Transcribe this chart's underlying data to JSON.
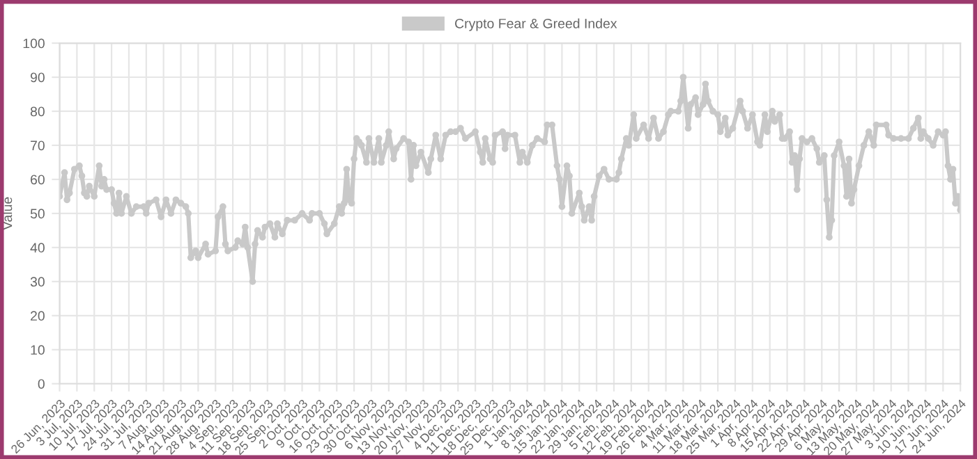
{
  "chart_data": {
    "type": "line",
    "ylabel": "Value",
    "legend": "top",
    "grid": true,
    "marker": "circle",
    "line_style": "solid",
    "xlim": [
      "2023-06-26",
      "2024-06-24"
    ],
    "ylim": [
      0,
      100
    ],
    "yticks": [
      0,
      10,
      20,
      30,
      40,
      50,
      60,
      70,
      80,
      90,
      100
    ],
    "xticks": [
      {
        "value": "2023-06-26",
        "label": "26 Jun, 2023"
      },
      {
        "value": "2023-07-03",
        "label": "3 Jul, 2023"
      },
      {
        "value": "2023-07-10",
        "label": "10 Jul, 2023"
      },
      {
        "value": "2023-07-17",
        "label": "17 Jul, 2023"
      },
      {
        "value": "2023-07-24",
        "label": "24 Jul, 2023"
      },
      {
        "value": "2023-07-31",
        "label": "31 Jul, 2023"
      },
      {
        "value": "2023-08-07",
        "label": "7 Aug, 2023"
      },
      {
        "value": "2023-08-14",
        "label": "14 Aug, 2023"
      },
      {
        "value": "2023-08-21",
        "label": "21 Aug, 2023"
      },
      {
        "value": "2023-08-28",
        "label": "28 Aug, 2023"
      },
      {
        "value": "2023-09-04",
        "label": "4 Sep, 2023"
      },
      {
        "value": "2023-09-11",
        "label": "11 Sep, 2023"
      },
      {
        "value": "2023-09-18",
        "label": "18 Sep, 2023"
      },
      {
        "value": "2023-09-25",
        "label": "25 Sep, 2023"
      },
      {
        "value": "2023-10-02",
        "label": "2 Oct, 2023"
      },
      {
        "value": "2023-10-09",
        "label": "9 Oct, 2023"
      },
      {
        "value": "2023-10-16",
        "label": "16 Oct, 2023"
      },
      {
        "value": "2023-10-23",
        "label": "23 Oct, 2023"
      },
      {
        "value": "2023-10-30",
        "label": "30 Oct, 2023"
      },
      {
        "value": "2023-11-06",
        "label": "6 Nov, 2023"
      },
      {
        "value": "2023-11-13",
        "label": "13 Nov, 2023"
      },
      {
        "value": "2023-11-20",
        "label": "20 Nov, 2023"
      },
      {
        "value": "2023-11-27",
        "label": "27 Nov, 2023"
      },
      {
        "value": "2023-12-04",
        "label": "4 Dec, 2023"
      },
      {
        "value": "2023-12-11",
        "label": "11 Dec, 2023"
      },
      {
        "value": "2023-12-18",
        "label": "18 Dec, 2023"
      },
      {
        "value": "2023-12-25",
        "label": "25 Dec, 2023"
      },
      {
        "value": "2024-01-01",
        "label": "1 Jan, 2024"
      },
      {
        "value": "2024-01-08",
        "label": "8 Jan, 2024"
      },
      {
        "value": "2024-01-15",
        "label": "15 Jan, 2024"
      },
      {
        "value": "2024-01-22",
        "label": "22 Jan, 2024"
      },
      {
        "value": "2024-01-29",
        "label": "29 Jan, 2024"
      },
      {
        "value": "2024-02-05",
        "label": "5 Feb, 2024"
      },
      {
        "value": "2024-02-12",
        "label": "12 Feb, 2024"
      },
      {
        "value": "2024-02-19",
        "label": "19 Feb, 2024"
      },
      {
        "value": "2024-02-26",
        "label": "26 Feb, 2024"
      },
      {
        "value": "2024-03-04",
        "label": "4 Mar, 2024"
      },
      {
        "value": "2024-03-11",
        "label": "11 Mar, 2024"
      },
      {
        "value": "2024-03-18",
        "label": "18 Mar, 2024"
      },
      {
        "value": "2024-03-25",
        "label": "25 Mar, 2024"
      },
      {
        "value": "2024-04-01",
        "label": "1 Apr, 2024"
      },
      {
        "value": "2024-04-08",
        "label": "8 Apr, 2024"
      },
      {
        "value": "2024-04-15",
        "label": "15 Apr, 2024"
      },
      {
        "value": "2024-04-22",
        "label": "22 Apr, 2024"
      },
      {
        "value": "2024-04-29",
        "label": "29 Apr, 2024"
      },
      {
        "value": "2024-05-06",
        "label": "6 May, 2024"
      },
      {
        "value": "2024-05-13",
        "label": "13 May, 2024"
      },
      {
        "value": "2024-05-20",
        "label": "20 May, 2024"
      },
      {
        "value": "2024-05-27",
        "label": "27 May, 2024"
      },
      {
        "value": "2024-06-03",
        "label": "3 Jun, 2024"
      },
      {
        "value": "2024-06-10",
        "label": "10 Jun, 2024"
      },
      {
        "value": "2024-06-17",
        "label": "17 Jun, 2024"
      },
      {
        "value": "2024-06-24",
        "label": "24 Jun, 2024"
      }
    ],
    "x": [
      "2023-06-26",
      "2023-06-28",
      "2023-06-29",
      "2023-06-30",
      "2023-07-02",
      "2023-07-04",
      "2023-07-05",
      "2023-07-06",
      "2023-07-07",
      "2023-07-08",
      "2023-07-10",
      "2023-07-12",
      "2023-07-13",
      "2023-07-14",
      "2023-07-15",
      "2023-07-17",
      "2023-07-18",
      "2023-07-19",
      "2023-07-20",
      "2023-07-21",
      "2023-07-23",
      "2023-07-25",
      "2023-07-27",
      "2023-07-30",
      "2023-07-31",
      "2023-08-01",
      "2023-08-04",
      "2023-08-06",
      "2023-08-08",
      "2023-08-10",
      "2023-08-12",
      "2023-08-14",
      "2023-08-16",
      "2023-08-17",
      "2023-08-18",
      "2023-08-20",
      "2023-08-21",
      "2023-08-24",
      "2023-08-25",
      "2023-08-28",
      "2023-08-29",
      "2023-08-31",
      "2023-09-01",
      "2023-09-02",
      "2023-09-05",
      "2023-09-06",
      "2023-09-08",
      "2023-09-09",
      "2023-09-10",
      "2023-09-12",
      "2023-09-13",
      "2023-09-14",
      "2023-09-16",
      "2023-09-17",
      "2023-09-19",
      "2023-09-21",
      "2023-09-22",
      "2023-09-24",
      "2023-09-26",
      "2023-09-29",
      "2023-10-02",
      "2023-10-05",
      "2023-10-06",
      "2023-10-09",
      "2023-10-11",
      "2023-10-12",
      "2023-10-15",
      "2023-10-17",
      "2023-10-18",
      "2023-10-19",
      "2023-10-20",
      "2023-10-21",
      "2023-10-22",
      "2023-10-23",
      "2023-10-24",
      "2023-10-25",
      "2023-10-26",
      "2023-10-28",
      "2023-10-29",
      "2023-10-31",
      "2023-11-02",
      "2023-11-03",
      "2023-11-05",
      "2023-11-06",
      "2023-11-08",
      "2023-11-09",
      "2023-11-12",
      "2023-11-14",
      "2023-11-15",
      "2023-11-16",
      "2023-11-17",
      "2023-11-19",
      "2023-11-22",
      "2023-11-23",
      "2023-11-25",
      "2023-11-27",
      "2023-11-29",
      "2023-12-01",
      "2023-12-03",
      "2023-12-05",
      "2023-12-07",
      "2023-12-11",
      "2023-12-13",
      "2023-12-14",
      "2023-12-15",
      "2023-12-17",
      "2023-12-18",
      "2023-12-19",
      "2023-12-22",
      "2023-12-23",
      "2023-12-24",
      "2023-12-27",
      "2023-12-29",
      "2023-12-30",
      "2024-01-01",
      "2024-01-03",
      "2024-01-05",
      "2024-01-08",
      "2024-01-09",
      "2024-01-11",
      "2024-01-13",
      "2024-01-14",
      "2024-01-15",
      "2024-01-17",
      "2024-01-18",
      "2024-01-19",
      "2024-01-22",
      "2024-01-23",
      "2024-01-24",
      "2024-01-26",
      "2024-01-27",
      "2024-01-28",
      "2024-01-30",
      "2024-02-01",
      "2024-02-03",
      "2024-02-06",
      "2024-02-07",
      "2024-02-08",
      "2024-02-10",
      "2024-02-11",
      "2024-02-13",
      "2024-02-14",
      "2024-02-17",
      "2024-02-19",
      "2024-02-21",
      "2024-02-23",
      "2024-02-25",
      "2024-02-27",
      "2024-02-28",
      "2024-03-02",
      "2024-03-03",
      "2024-03-04",
      "2024-03-06",
      "2024-03-07",
      "2024-03-09",
      "2024-03-10",
      "2024-03-12",
      "2024-03-13",
      "2024-03-14",
      "2024-03-16",
      "2024-03-18",
      "2024-03-19",
      "2024-03-21",
      "2024-03-22",
      "2024-03-24",
      "2024-03-27",
      "2024-03-28",
      "2024-03-30",
      "2024-04-01",
      "2024-04-03",
      "2024-04-04",
      "2024-04-06",
      "2024-04-07",
      "2024-04-09",
      "2024-04-10",
      "2024-04-12",
      "2024-04-13",
      "2024-04-14",
      "2024-04-16",
      "2024-04-17",
      "2024-04-18",
      "2024-04-19",
      "2024-04-20",
      "2024-04-21",
      "2024-04-23",
      "2024-04-25",
      "2024-04-27",
      "2024-04-28",
      "2024-04-30",
      "2024-05-01",
      "2024-05-02",
      "2024-05-03",
      "2024-05-04",
      "2024-05-06",
      "2024-05-08",
      "2024-05-09",
      "2024-05-10",
      "2024-05-11",
      "2024-05-12",
      "2024-05-14",
      "2024-05-16",
      "2024-05-18",
      "2024-05-20",
      "2024-05-21",
      "2024-05-25",
      "2024-05-26",
      "2024-05-28",
      "2024-05-31",
      "2024-06-03",
      "2024-06-05",
      "2024-06-07",
      "2024-06-08",
      "2024-06-09",
      "2024-06-11",
      "2024-06-13",
      "2024-06-15",
      "2024-06-17",
      "2024-06-18",
      "2024-06-19",
      "2024-06-20",
      "2024-06-21",
      "2024-06-22",
      "2024-06-23",
      "2024-06-24"
    ],
    "series": [
      {
        "name": "Crypto Fear & Greed Index",
        "color": "#c9c9c9",
        "values": [
          55,
          62,
          54,
          56,
          63,
          64,
          61,
          56,
          55,
          58,
          55,
          64,
          58,
          60,
          57,
          57,
          53,
          50,
          56,
          50,
          55,
          50,
          52,
          52,
          50,
          53,
          54,
          49,
          54,
          50,
          54,
          53,
          52,
          50,
          37,
          39,
          37,
          41,
          38,
          39,
          49,
          52,
          41,
          39,
          40,
          42,
          41,
          46,
          40,
          30,
          41,
          45,
          43,
          46,
          47,
          43,
          47,
          44,
          48,
          48,
          50,
          48,
          50,
          50,
          47,
          44,
          47,
          52,
          50,
          53,
          63,
          54,
          53,
          66,
          72,
          71,
          70,
          65,
          72,
          65,
          72,
          65,
          70,
          74,
          66,
          69,
          72,
          71,
          60,
          70,
          64,
          68,
          62,
          66,
          73,
          66,
          73,
          74,
          74,
          75,
          72,
          74,
          68,
          65,
          72,
          66,
          65,
          73,
          74,
          69,
          73,
          73,
          65,
          68,
          65,
          70,
          72,
          71,
          76,
          76,
          64,
          60,
          52,
          64,
          61,
          50,
          56,
          52,
          48,
          52,
          48,
          55,
          61,
          63,
          60,
          60,
          62,
          66,
          72,
          70,
          79,
          72,
          76,
          72,
          78,
          72,
          74,
          79,
          80,
          80,
          83,
          90,
          75,
          82,
          84,
          79,
          82,
          88,
          83,
          80,
          79,
          74,
          78,
          73,
          75,
          83,
          80,
          75,
          79,
          71,
          70,
          79,
          74,
          80,
          77,
          79,
          72,
          72,
          74,
          65,
          67,
          57,
          66,
          72,
          71,
          72,
          69,
          65,
          67,
          54,
          43,
          48,
          67,
          71,
          64,
          55,
          66,
          53,
          57,
          64,
          70,
          74,
          70,
          76,
          76,
          73,
          72,
          72,
          72,
          75,
          78,
          72,
          74,
          72,
          70,
          74,
          73,
          74,
          64,
          60,
          63,
          53,
          55,
          51
        ]
      }
    ]
  }
}
